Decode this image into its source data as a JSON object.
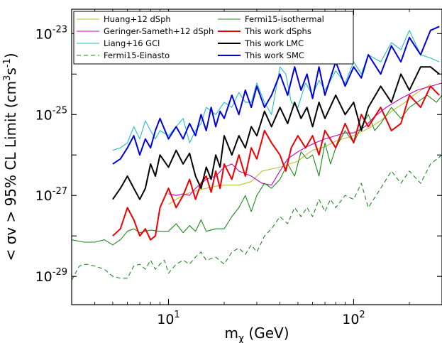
{
  "chart_data": {
    "type": "line",
    "title": "",
    "xlabel": "m",
    "xlabel_sub": "χ",
    "xlabel_unit": " (GeV)",
    "ylabel": "< σv > 95% CL Limit (cm",
    "ylabel_sup1": "3",
    "ylabel_mid": "s",
    "ylabel_sup2": "-1",
    "ylabel_end": ")",
    "xscale": "log",
    "yscale": "log",
    "xlim": [
      3,
      300
    ],
    "ylim": [
      2e-30,
      4e-23
    ],
    "x_ticks": [
      {
        "value": 10,
        "base": "10",
        "exp": "1"
      },
      {
        "value": 100,
        "base": "10",
        "exp": "2"
      }
    ],
    "y_ticks": [
      {
        "value": 1e-29,
        "base": "10",
        "exp": "-29"
      },
      {
        "value": 1e-27,
        "base": "10",
        "exp": "-27"
      },
      {
        "value": 1e-25,
        "base": "10",
        "exp": "-25"
      },
      {
        "value": 1e-23,
        "base": "10",
        "exp": "-23"
      }
    ],
    "grid": false,
    "legend_position": "top-left",
    "series": [
      {
        "name": "Huang+12 dSph",
        "color": "#bfbf2a",
        "width": 1.1,
        "dash": "",
        "x": [
          10,
          11,
          12.5,
          14,
          16,
          18,
          20,
          24,
          28,
          32,
          36,
          40,
          45,
          50,
          55,
          60,
          70,
          80,
          90,
          100,
          120,
          140,
          160,
          190,
          220,
          260
        ],
        "y": [
          6e-28,
          8e-28,
          1.1e-27,
          1.3e-27,
          1.5e-27,
          1.7e-27,
          1.8e-27,
          1.8e-27,
          2.2e-27,
          4e-27,
          4.5e-27,
          5e-27,
          6e-27,
          7e-27,
          1e-26,
          1.3e-26,
          1.6e-26,
          2.2e-26,
          2.6e-26,
          3e-26,
          4.5e-26,
          7e-26,
          1.2e-25,
          2e-25,
          3.5e-25,
          5.5e-25
        ]
      },
      {
        "name": "Geringer-Sameth+12 dSph",
        "color": "#bf00bf",
        "width": 1.1,
        "dash": "",
        "x": [
          10,
          11,
          12,
          13,
          14,
          16,
          18,
          20,
          22,
          24,
          28,
          32,
          36,
          40,
          44,
          50,
          56,
          62,
          70,
          80,
          90,
          100,
          115,
          130,
          150,
          180,
          220,
          300
        ],
        "y": [
          1.1e-27,
          1e-27,
          1.1e-27,
          1e-27,
          1.5e-27,
          2.5e-27,
          3e-27,
          5e-27,
          6e-27,
          4e-27,
          3e-27,
          2e-27,
          1.8e-27,
          4e-27,
          8e-27,
          1.2e-26,
          1.6e-26,
          2e-26,
          2.5e-26,
          3e-26,
          3.5e-26,
          3.5e-26,
          5e-26,
          9e-26,
          1.5e-25,
          2.5e-25,
          4e-25,
          6e-25
        ]
      },
      {
        "name": "Liang+16 GCl",
        "color": "#22bfbf",
        "width": 1.1,
        "dash": "",
        "x": [
          5,
          5.5,
          6,
          6.5,
          7,
          7.5,
          8,
          8.5,
          9,
          10,
          11,
          12,
          13,
          14,
          15,
          16,
          18,
          20,
          22,
          24,
          26,
          28,
          30,
          33,
          36,
          40,
          43,
          46,
          50,
          55,
          60,
          65,
          70,
          80,
          90,
          100,
          110,
          120,
          140,
          160,
          180,
          200,
          230,
          260,
          290
        ],
        "y": [
          1.3e-26,
          1.5e-26,
          2e-26,
          5e-26,
          2.5e-26,
          7e-26,
          4e-26,
          2.5e-26,
          4e-26,
          3e-26,
          5e-26,
          8e-26,
          2e-26,
          4e-26,
          6e-26,
          1.5e-25,
          1e-25,
          2e-25,
          1.5e-25,
          3.5e-25,
          2e-25,
          2e-25,
          6e-25,
          2e-25,
          1e-25,
          1.5e-24,
          1e-24,
          2e-25,
          1.5e-25,
          6e-25,
          3e-25,
          7e-25,
          4e-25,
          1.2e-24,
          6e-25,
          2e-24,
          1e-24,
          3e-24,
          2e-24,
          6e-24,
          4e-24,
          1.2e-23,
          3e-24,
          2.5e-24,
          2e-24
        ]
      },
      {
        "name": "Fermi15-Einasto",
        "color": "#1b8a1b",
        "width": 1.1,
        "dash": "6,4",
        "x": [
          3,
          3.3,
          3.6,
          4,
          4.5,
          5,
          5.5,
          6,
          6.5,
          7,
          7.5,
          8,
          8.5,
          9,
          9.5,
          10,
          11,
          12,
          13,
          14,
          15,
          16,
          18,
          20,
          22,
          24,
          26,
          28,
          30,
          33,
          36,
          40,
          44,
          48,
          52,
          56,
          60,
          65,
          70,
          75,
          80,
          90,
          100,
          110,
          120,
          140,
          160,
          180,
          200,
          230,
          260,
          300
        ],
        "y": [
          8e-30,
          1.8e-29,
          2e-29,
          1.8e-29,
          1.5e-29,
          1e-29,
          9e-30,
          9e-30,
          1.8e-29,
          2e-29,
          1.5e-29,
          2.5e-29,
          1.5e-29,
          2e-29,
          2.5e-29,
          1.2e-29,
          2e-29,
          2.5e-29,
          2e-29,
          3e-29,
          4e-29,
          2.5e-29,
          3e-29,
          2e-29,
          4e-29,
          5e-29,
          3.5e-29,
          6e-29,
          4e-29,
          1e-28,
          1.5e-28,
          3e-28,
          2e-28,
          5e-28,
          3e-28,
          5e-28,
          3e-28,
          8e-28,
          4e-28,
          8e-28,
          5e-28,
          1e-27,
          8e-28,
          2e-27,
          5e-28,
          1.5e-27,
          4e-27,
          2e-27,
          4e-27,
          2e-27,
          6e-27,
          1e-26
        ]
      },
      {
        "name": "Fermi15-isothermal",
        "color": "#1b8a1b",
        "width": 1.1,
        "dash": "",
        "x": [
          3,
          3.5,
          4,
          4.5,
          5,
          5.5,
          6,
          6.5,
          7,
          7.5,
          8,
          9,
          10,
          11,
          12,
          13,
          14,
          15,
          16,
          18,
          20,
          22,
          24,
          26,
          28,
          30,
          33,
          36,
          40,
          44,
          48,
          52,
          56,
          60,
          65,
          70,
          75,
          80,
          90,
          100,
          110,
          120,
          130,
          140,
          160,
          180,
          200,
          220,
          250,
          280,
          300
        ],
        "y": [
          8e-29,
          7e-29,
          7e-29,
          8e-29,
          6e-29,
          8e-29,
          1.3e-28,
          1.5e-28,
          1.2e-28,
          1.3e-28,
          1.4e-28,
          1.3e-28,
          1.3e-28,
          2e-28,
          1.2e-28,
          1.8e-28,
          1.3e-28,
          2.5e-28,
          1.3e-28,
          1.5e-28,
          1.5e-28,
          3e-28,
          5e-28,
          1e-27,
          4e-28,
          1e-27,
          2e-27,
          1.5e-27,
          2.5e-27,
          6e-27,
          3e-27,
          1.2e-26,
          8e-27,
          1e-26,
          3e-27,
          2e-26,
          6e-27,
          1.5e-26,
          4e-26,
          2e-26,
          5e-26,
          1e-25,
          4e-26,
          6e-26,
          1.5e-25,
          8e-26,
          1.5e-25,
          2e-25,
          3e-25,
          2e-25,
          3e-25
        ]
      },
      {
        "name": "This work dSphs",
        "color": "#ee0000",
        "width": 2.0,
        "dash": "",
        "x": [
          5,
          5.5,
          6,
          6.5,
          7,
          7.5,
          8,
          8.5,
          9,
          10,
          11,
          12,
          13,
          14,
          15,
          16,
          17,
          18,
          19,
          20,
          22,
          24,
          26,
          28,
          30,
          33,
          36,
          40,
          43,
          46,
          50,
          55,
          60,
          65,
          70,
          80,
          90,
          100,
          110,
          120,
          140,
          160,
          180,
          200,
          230,
          260,
          290
        ],
        "y": [
          1e-28,
          1.5e-28,
          5e-28,
          2.5e-28,
          1e-28,
          1.5e-28,
          8e-29,
          1e-28,
          5e-28,
          1.5e-27,
          5e-28,
          1e-27,
          2.5e-27,
          8e-28,
          2e-27,
          3e-27,
          1.2e-27,
          4e-27,
          1.5e-27,
          6e-27,
          2.5e-27,
          1e-26,
          3e-27,
          1.5e-26,
          8e-27,
          4e-26,
          2e-26,
          1e-26,
          4e-27,
          1.5e-26,
          3e-26,
          1.5e-26,
          3e-26,
          1e-26,
          4e-26,
          1.5e-26,
          6e-26,
          2e-26,
          1e-25,
          5e-26,
          1.5e-25,
          4e-26,
          6e-26,
          3e-25,
          1.5e-25,
          5e-25,
          3e-25
        ]
      },
      {
        "name": "This work LMC",
        "color": "#000000",
        "width": 2.0,
        "dash": "",
        "x": [
          5,
          5.5,
          6,
          6.5,
          7,
          7.5,
          8,
          8.5,
          9,
          10,
          11,
          12,
          13,
          14,
          15,
          16,
          17,
          18,
          19,
          20,
          22,
          24,
          26,
          28,
          30,
          33,
          36,
          40,
          44,
          48,
          52,
          56,
          60,
          65,
          70,
          80,
          90,
          100,
          110,
          120,
          140,
          160,
          180,
          200,
          230,
          260,
          290
        ],
        "y": [
          8e-28,
          1.5e-27,
          3e-27,
          1.5e-27,
          8e-28,
          1.5e-27,
          6e-27,
          3e-27,
          1e-26,
          5e-27,
          1.3e-26,
          6e-27,
          1.1e-26,
          3e-27,
          1.5e-27,
          5e-27,
          2.5e-27,
          1e-26,
          5e-27,
          3e-26,
          1e-26,
          3e-26,
          1.5e-26,
          5e-26,
          3e-26,
          1.2e-25,
          5e-26,
          1.5e-25,
          6e-26,
          2e-25,
          8e-26,
          1.5e-25,
          5e-26,
          2e-25,
          8e-26,
          3e-25,
          1e-25,
          2e-25,
          4e-26,
          1.5e-25,
          5e-25,
          2e-25,
          1e-24,
          4e-25,
          1.5e-24,
          1.5e-24,
          1e-24
        ]
      },
      {
        "name": "This work SMC",
        "color": "#0000dd",
        "width": 2.0,
        "dash": "",
        "x": [
          5,
          5.5,
          6,
          6.5,
          7,
          7.5,
          8,
          8.5,
          9,
          10,
          11,
          12,
          13,
          14,
          15,
          16,
          17,
          18,
          19,
          20,
          22,
          24,
          26,
          28,
          30,
          33,
          36,
          40,
          44,
          48,
          52,
          56,
          60,
          65,
          70,
          80,
          90,
          100,
          110,
          120,
          140,
          160,
          180,
          200,
          230,
          260,
          290
        ],
        "y": [
          6e-27,
          8e-27,
          1.5e-26,
          3e-26,
          1e-26,
          2.5e-26,
          1.5e-26,
          4e-26,
          8e-26,
          2.5e-26,
          5e-26,
          2.5e-26,
          6e-26,
          3e-26,
          1e-25,
          4e-26,
          1.5e-25,
          5e-26,
          1.2e-25,
          8e-26,
          3e-25,
          1e-25,
          4e-25,
          1.5e-25,
          5e-25,
          1.5e-25,
          3e-25,
          1e-24,
          3e-25,
          1.5e-24,
          4e-25,
          1e-24,
          2.5e-25,
          1.5e-24,
          3e-25,
          2e-24,
          5e-25,
          1.5e-24,
          8e-25,
          3e-24,
          1e-24,
          5e-24,
          2e-24,
          8e-24,
          3e-24,
          1.2e-23,
          1.5e-23
        ]
      }
    ]
  }
}
